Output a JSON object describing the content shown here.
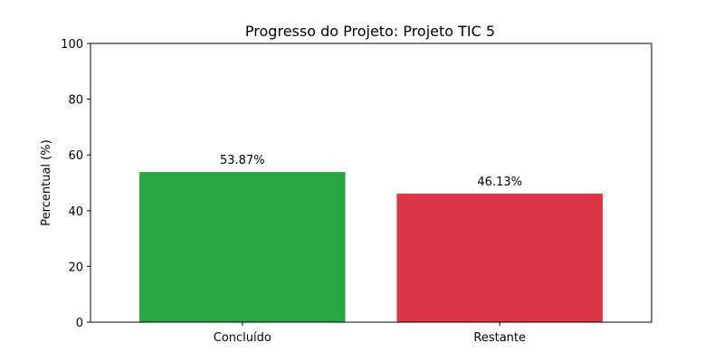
{
  "chart_data": {
    "type": "bar",
    "title": "Progresso do Projeto: Projeto TIC 5",
    "ylabel": "Percentual (%)",
    "xlabel": "",
    "categories": [
      "Concluído",
      "Restante"
    ],
    "values": [
      53.87,
      46.13
    ],
    "data_labels": [
      "53.87%",
      "46.13%"
    ],
    "colors": [
      "#28a745",
      "#dc3545"
    ],
    "ylim": [
      0,
      100
    ],
    "yticks": [
      0,
      20,
      40,
      60,
      80,
      100
    ],
    "ytick_labels": [
      "0",
      "20",
      "40",
      "60",
      "80",
      "100"
    ],
    "grid": false,
    "legend": "none"
  }
}
